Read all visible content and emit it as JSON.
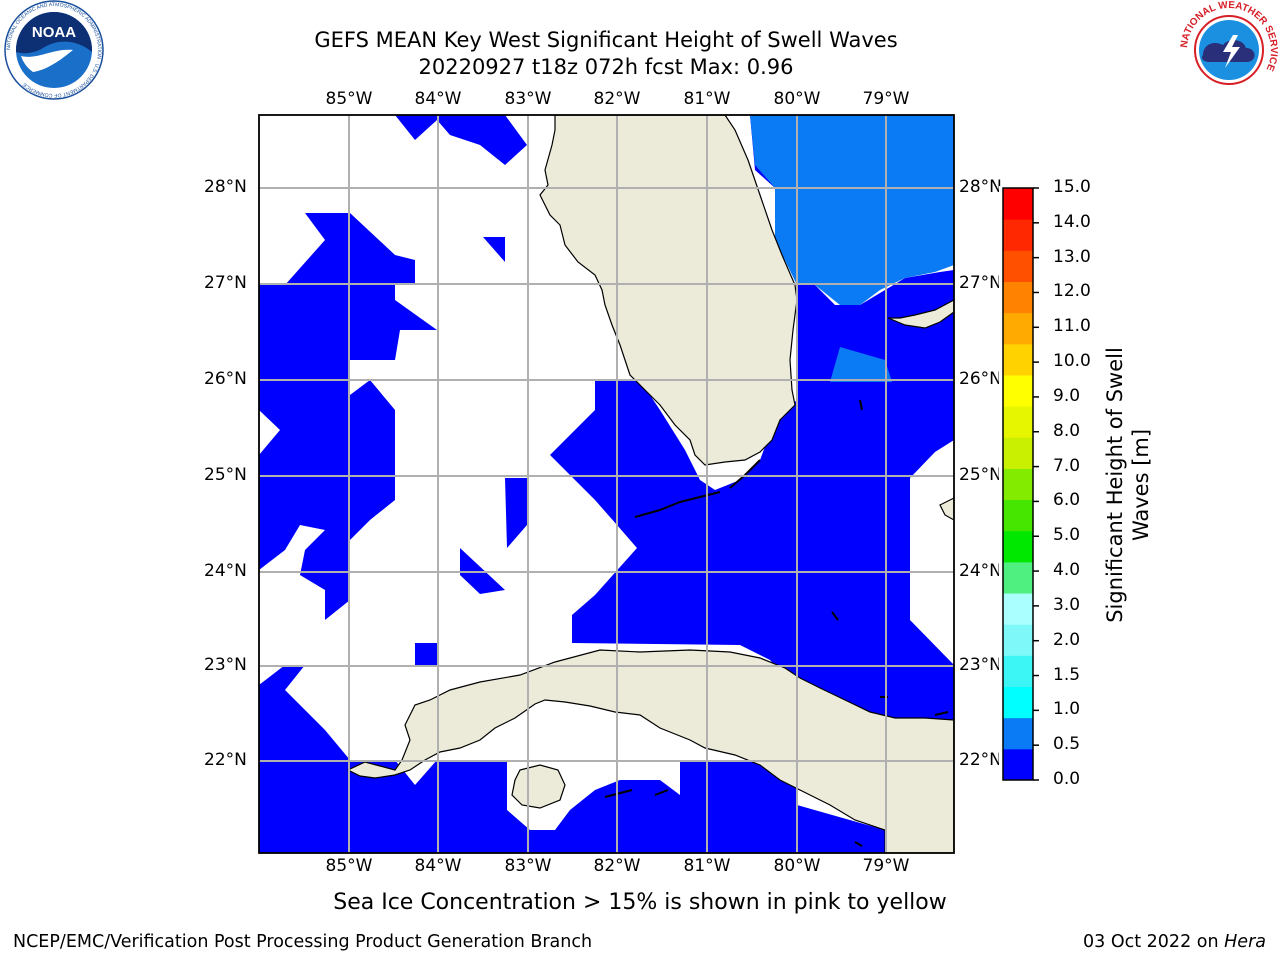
{
  "title_line1": "GEFS MEAN Key West Significant Height of Swell Waves",
  "title_line2": "20220927 t18z 072h fcst   Max: 0.96",
  "longitude_labels": [
    "85°W",
    "84°W",
    "83°W",
    "82°W",
    "81°W",
    "80°W",
    "79°W"
  ],
  "latitude_labels": [
    "28°N",
    "27°N",
    "26°N",
    "25°N",
    "24°N",
    "23°N",
    "22°N"
  ],
  "colorbar": {
    "label_line1": "Significant Height of Swell",
    "label_line2": "Waves [m]",
    "ticks": [
      "15.0",
      "14.0",
      "13.0",
      "12.0",
      "11.0",
      "10.0",
      "9.0",
      "8.0",
      "7.0",
      "6.0",
      "5.0",
      "4.0",
      "3.0",
      "2.0",
      "1.5",
      "1.0",
      "0.5",
      "0.0"
    ],
    "colors_bottom_to_top": [
      "#0000ff",
      "#0a7af5",
      "#00ffff",
      "#3cf5f5",
      "#7ef8f8",
      "#aaffff",
      "#50f080",
      "#00e800",
      "#46e600",
      "#82eb00",
      "#c8f000",
      "#e6f500",
      "#ffff00",
      "#ffd200",
      "#ffaa00",
      "#ff8200",
      "#ff5000",
      "#ff2800",
      "#ff0000"
    ]
  },
  "sea_ice_note": "Sea Ice Concentration > 15% is shown in pink to yellow",
  "footer_left": "NCEP/EMC/Verification Post Processing Product Generation Branch",
  "footer_right_date": "03 Oct 2022 on ",
  "footer_right_host": "Hera",
  "logos": {
    "noaa_text": "NOAA",
    "noaa_ring_text": "NATIONAL OCEANIC AND ATMOSPHERIC ADMINISTRATION · U.S. DEPARTMENT OF COMMERCE",
    "nws_ring_text": "NATIONAL WEATHER SERVICE"
  },
  "colors": {
    "land": "#ecebd9",
    "swell_low": "#0000ff",
    "swell_mid": "#0a7af5",
    "grid": "#b0b0b0"
  }
}
